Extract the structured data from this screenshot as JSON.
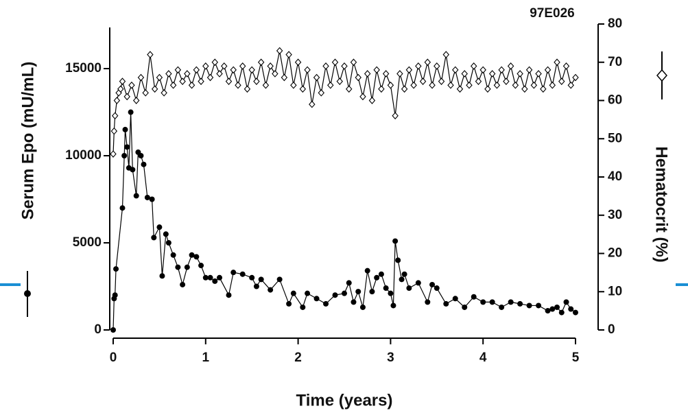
{
  "chart_data": {
    "type": "line",
    "annotation": "97E026",
    "x_label": "Time (years)",
    "y_label": "Serum Epo (mU/mL)",
    "y2_label": "Hematocrit (%)",
    "xlim": [
      0,
      5
    ],
    "xticks": [
      0,
      1,
      2,
      3,
      4,
      5
    ],
    "ylim": [
      0,
      17560
    ],
    "yticks": [
      0,
      5000,
      10000,
      15000
    ],
    "y2lim": [
      0,
      80
    ],
    "y2ticks": [
      0,
      10,
      20,
      30,
      40,
      50,
      60,
      70,
      80
    ],
    "series": [
      {
        "color": "#000000",
        "marker": "filled-circle",
        "x": [
          0,
          0.01,
          0.02,
          0.03,
          0.1,
          0.12,
          0.13,
          0.15,
          0.17,
          0.19,
          0.21,
          0.25,
          0.27,
          0.3,
          0.33,
          0.37,
          0.42,
          0.44,
          0.5,
          0.53,
          0.57,
          0.6,
          0.65,
          0.7,
          0.75,
          0.8,
          0.85,
          0.9,
          0.95,
          1.0,
          1.05,
          1.1,
          1.15,
          1.25,
          1.3,
          1.4,
          1.5,
          1.55,
          1.6,
          1.7,
          1.8,
          1.9,
          1.95,
          2.05,
          2.1,
          2.2,
          2.3,
          2.4,
          2.5,
          2.55,
          2.6,
          2.65,
          2.7,
          2.75,
          2.8,
          2.85,
          2.9,
          2.95,
          3.0,
          3.03,
          3.05,
          3.08,
          3.12,
          3.15,
          3.2,
          3.3,
          3.4,
          3.45,
          3.5,
          3.6,
          3.7,
          3.8,
          3.9,
          4.0,
          4.1,
          4.2,
          4.3,
          4.4,
          4.5,
          4.6,
          4.7,
          4.75,
          4.8,
          4.85,
          4.9,
          4.95,
          5.0
        ],
        "values": [
          0,
          1800,
          2000,
          3500,
          7000,
          10000,
          11500,
          10500,
          9300,
          12500,
          9200,
          7700,
          10200,
          10000,
          9500,
          7600,
          7500,
          5300,
          5900,
          3100,
          5500,
          5000,
          4300,
          3600,
          2600,
          3600,
          4300,
          4200,
          3700,
          3000,
          3000,
          2800,
          3000,
          2000,
          3300,
          3200,
          3000,
          2500,
          2900,
          2300,
          2900,
          1500,
          2100,
          1300,
          2100,
          1800,
          1500,
          2000,
          2100,
          2700,
          1600,
          2200,
          1300,
          3400,
          2200,
          3000,
          3200,
          2400,
          2100,
          1400,
          5100,
          4000,
          2900,
          3200,
          2400,
          2700,
          1600,
          2600,
          2400,
          1500,
          1800,
          1300,
          1900,
          1600,
          1600,
          1300,
          1600,
          1500,
          1400,
          1400,
          1100,
          1200,
          1300,
          1000,
          1600,
          1200,
          1000
        ]
      },
      {
        "color": "#000000",
        "marker": "open-diamond",
        "axis": "y2",
        "x": [
          0,
          0.01,
          0.02,
          0.04,
          0.06,
          0.08,
          0.1,
          0.15,
          0.2,
          0.25,
          0.3,
          0.35,
          0.4,
          0.45,
          0.5,
          0.55,
          0.6,
          0.65,
          0.7,
          0.75,
          0.8,
          0.85,
          0.9,
          0.95,
          1.0,
          1.05,
          1.1,
          1.15,
          1.2,
          1.25,
          1.3,
          1.35,
          1.4,
          1.45,
          1.5,
          1.55,
          1.6,
          1.65,
          1.7,
          1.75,
          1.8,
          1.85,
          1.9,
          1.95,
          2.0,
          2.05,
          2.1,
          2.15,
          2.2,
          2.25,
          2.3,
          2.35,
          2.4,
          2.45,
          2.5,
          2.55,
          2.6,
          2.65,
          2.7,
          2.75,
          2.8,
          2.85,
          2.9,
          2.95,
          3.0,
          3.05,
          3.1,
          3.15,
          3.2,
          3.25,
          3.3,
          3.35,
          3.4,
          3.45,
          3.5,
          3.55,
          3.6,
          3.65,
          3.7,
          3.75,
          3.8,
          3.85,
          3.9,
          3.95,
          4.0,
          4.05,
          4.1,
          4.15,
          4.2,
          4.25,
          4.3,
          4.35,
          4.4,
          4.45,
          4.5,
          4.55,
          4.6,
          4.65,
          4.7,
          4.75,
          4.8,
          4.85,
          4.9,
          4.95,
          5.0
        ],
        "values": [
          46,
          52,
          56,
          60,
          62,
          63,
          65,
          61,
          64,
          60,
          66,
          62,
          72,
          63,
          66,
          62,
          67,
          64,
          68,
          65,
          67,
          64,
          68,
          65,
          69,
          66,
          70,
          67,
          69,
          65,
          68,
          64,
          69,
          63,
          68,
          65,
          70,
          64,
          69,
          67,
          73,
          66,
          72,
          64,
          70,
          63,
          68,
          59,
          66,
          62,
          69,
          64,
          70,
          65,
          69,
          63,
          70,
          66,
          61,
          67,
          60,
          68,
          63,
          67,
          64,
          56,
          67,
          63,
          68,
          64,
          69,
          65,
          70,
          64,
          69,
          65,
          72,
          64,
          68,
          63,
          67,
          64,
          69,
          65,
          68,
          63,
          67,
          64,
          68,
          65,
          69,
          64,
          67,
          63,
          68,
          64,
          67,
          63,
          68,
          64,
          70,
          65,
          69,
          64,
          66
        ]
      }
    ]
  }
}
